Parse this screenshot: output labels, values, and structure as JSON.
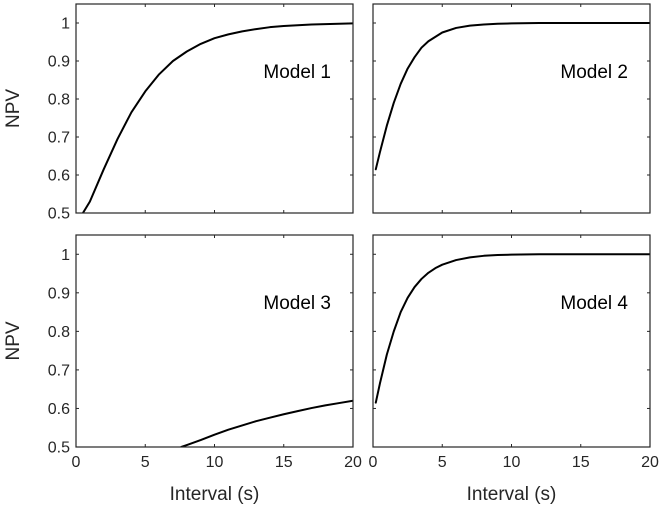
{
  "chart_data": [
    {
      "type": "line",
      "title": "Model 1",
      "xlabel": "",
      "ylabel": "NPV",
      "xlim": [
        0,
        20
      ],
      "ylim": [
        0.5,
        1.05
      ],
      "xticks": [
        0,
        5,
        10,
        15,
        20
      ],
      "yticks": [
        0.5,
        0.6,
        0.7,
        0.8,
        0.9,
        1
      ],
      "xtick_labels": [
        "",
        "",
        "",
        "",
        ""
      ],
      "ytick_labels": [
        "0.5",
        "0.6",
        "0.7",
        "0.8",
        "0.9",
        "1"
      ],
      "grid": false,
      "series": [
        {
          "x": [
            0.5,
            1,
            2,
            3,
            4,
            5,
            6,
            7,
            8,
            9,
            10,
            11,
            12,
            13,
            14,
            15,
            16,
            17,
            18,
            19,
            20
          ],
          "y": [
            0.5,
            0.53,
            0.615,
            0.695,
            0.765,
            0.82,
            0.865,
            0.9,
            0.925,
            0.945,
            0.96,
            0.97,
            0.978,
            0.984,
            0.989,
            0.992,
            0.994,
            0.996,
            0.997,
            0.998,
            0.999
          ]
        }
      ]
    },
    {
      "type": "line",
      "title": "Model 2",
      "xlabel": "",
      "ylabel": "",
      "xlim": [
        0,
        20
      ],
      "ylim": [
        0.5,
        1.05
      ],
      "xticks": [
        0,
        5,
        10,
        15,
        20
      ],
      "yticks": [
        0.5,
        0.6,
        0.7,
        0.8,
        0.9,
        1
      ],
      "xtick_labels": [
        "",
        "",
        "",
        "",
        ""
      ],
      "ytick_labels": [
        "",
        "",
        "",
        "",
        "",
        ""
      ],
      "grid": false,
      "series": [
        {
          "x": [
            0.2,
            0.5,
            1,
            1.5,
            2,
            2.5,
            3,
            3.5,
            4,
            5,
            6,
            7,
            8,
            9,
            10,
            12,
            14,
            16,
            18,
            20
          ],
          "y": [
            0.615,
            0.66,
            0.73,
            0.79,
            0.84,
            0.88,
            0.91,
            0.935,
            0.952,
            0.975,
            0.987,
            0.993,
            0.996,
            0.998,
            0.999,
            1.0,
            1.0,
            1.0,
            1.0,
            1.0
          ]
        }
      ]
    },
    {
      "type": "line",
      "title": "Model 3",
      "xlabel": "Interval (s)",
      "ylabel": "NPV",
      "xlim": [
        0,
        20
      ],
      "ylim": [
        0.5,
        1.05
      ],
      "xticks": [
        0,
        5,
        10,
        15,
        20
      ],
      "yticks": [
        0.5,
        0.6,
        0.7,
        0.8,
        0.9,
        1
      ],
      "xtick_labels": [
        "0",
        "5",
        "10",
        "15",
        "20"
      ],
      "ytick_labels": [
        "0.5",
        "0.6",
        "0.7",
        "0.8",
        "0.9",
        "1"
      ],
      "grid": false,
      "series": [
        {
          "x": [
            7.6,
            8,
            9,
            10,
            11,
            12,
            13,
            14,
            15,
            16,
            17,
            18,
            19,
            20
          ],
          "y": [
            0.5,
            0.505,
            0.518,
            0.532,
            0.545,
            0.556,
            0.567,
            0.576,
            0.585,
            0.593,
            0.601,
            0.608,
            0.614,
            0.62
          ]
        }
      ]
    },
    {
      "type": "line",
      "title": "Model 4",
      "xlabel": "Interval (s)",
      "ylabel": "",
      "xlim": [
        0,
        20
      ],
      "ylim": [
        0.5,
        1.05
      ],
      "xticks": [
        0,
        5,
        10,
        15,
        20
      ],
      "yticks": [
        0.5,
        0.6,
        0.7,
        0.8,
        0.9,
        1
      ],
      "xtick_labels": [
        "0",
        "5",
        "10",
        "15",
        "20"
      ],
      "ytick_labels": [
        "",
        "",
        "",
        "",
        "",
        ""
      ],
      "grid": false,
      "series": [
        {
          "x": [
            0.2,
            0.5,
            1,
            1.5,
            2,
            2.5,
            3,
            3.5,
            4,
            4.5,
            5,
            6,
            7,
            8,
            9,
            10,
            12,
            14,
            16,
            18,
            20
          ],
          "y": [
            0.615,
            0.665,
            0.74,
            0.8,
            0.85,
            0.887,
            0.915,
            0.936,
            0.952,
            0.964,
            0.973,
            0.985,
            0.992,
            0.996,
            0.998,
            0.999,
            1.0,
            1.0,
            1.0,
            1.0,
            1.0
          ]
        }
      ]
    }
  ]
}
